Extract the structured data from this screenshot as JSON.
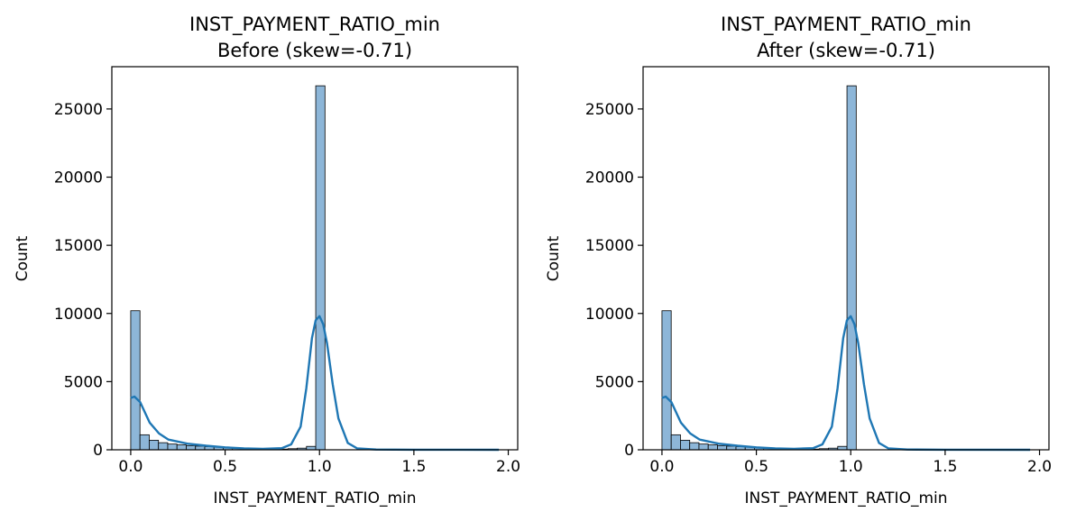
{
  "chart_data": [
    {
      "type": "bar",
      "title_line1": "INST_PAYMENT_RATIO_min",
      "title_line2": "Before (skew=-0.71)",
      "xlabel": "INST_PAYMENT_RATIO_min",
      "ylabel": "Count",
      "xlim": [
        -0.1,
        2.05
      ],
      "ylim": [
        0,
        28100
      ],
      "xticks": [
        0.0,
        0.5,
        1.0,
        1.5,
        2.0
      ],
      "xtick_labels": [
        "0.0",
        "0.5",
        "1.0",
        "1.5",
        "2.0"
      ],
      "yticks": [
        0,
        5000,
        10000,
        15000,
        20000,
        25000
      ],
      "ytick_labels": [
        "0",
        "5000",
        "10000",
        "15000",
        "20000",
        "25000"
      ],
      "bin_width": 0.049,
      "bins_start": [
        0.0,
        0.049,
        0.098,
        0.147,
        0.196,
        0.245,
        0.294,
        0.343,
        0.392,
        0.441,
        0.49,
        0.539,
        0.588,
        0.637,
        0.686,
        0.735,
        0.784,
        0.833,
        0.882,
        0.931,
        0.98
      ],
      "values": [
        10200,
        1100,
        700,
        520,
        420,
        360,
        310,
        270,
        230,
        190,
        160,
        110,
        80,
        60,
        50,
        45,
        50,
        80,
        120,
        250,
        26700
      ],
      "kde": {
        "x": [
          0.0,
          0.02,
          0.05,
          0.08,
          0.1,
          0.15,
          0.2,
          0.3,
          0.4,
          0.5,
          0.6,
          0.7,
          0.8,
          0.85,
          0.9,
          0.93,
          0.96,
          0.98,
          1.0,
          1.02,
          1.04,
          1.07,
          1.1,
          1.15,
          1.2,
          1.3,
          1.5,
          1.95
        ],
        "y": [
          3800,
          3900,
          3500,
          2600,
          2000,
          1200,
          750,
          450,
          300,
          180,
          100,
          70,
          120,
          400,
          1700,
          4500,
          8200,
          9500,
          9800,
          9200,
          7800,
          4800,
          2300,
          500,
          100,
          20,
          5,
          0
        ]
      },
      "kde_color": "#1f77b4",
      "bar_color": "#8db6d8",
      "bar_edge_color": "#000000"
    },
    {
      "type": "bar",
      "title_line1": "INST_PAYMENT_RATIO_min",
      "title_line2": "After (skew=-0.71)",
      "xlabel": "INST_PAYMENT_RATIO_min",
      "ylabel": "Count",
      "xlim": [
        -0.1,
        2.05
      ],
      "ylim": [
        0,
        28100
      ],
      "xticks": [
        0.0,
        0.5,
        1.0,
        1.5,
        2.0
      ],
      "xtick_labels": [
        "0.0",
        "0.5",
        "1.0",
        "1.5",
        "2.0"
      ],
      "yticks": [
        0,
        5000,
        10000,
        15000,
        20000,
        25000
      ],
      "ytick_labels": [
        "0",
        "5000",
        "10000",
        "15000",
        "20000",
        "25000"
      ],
      "bin_width": 0.049,
      "bins_start": [
        0.0,
        0.049,
        0.098,
        0.147,
        0.196,
        0.245,
        0.294,
        0.343,
        0.392,
        0.441,
        0.49,
        0.539,
        0.588,
        0.637,
        0.686,
        0.735,
        0.784,
        0.833,
        0.882,
        0.931,
        0.98
      ],
      "values": [
        10200,
        1100,
        700,
        520,
        420,
        360,
        310,
        270,
        230,
        190,
        160,
        110,
        80,
        60,
        50,
        45,
        50,
        80,
        120,
        250,
        26700
      ],
      "kde": {
        "x": [
          0.0,
          0.02,
          0.05,
          0.08,
          0.1,
          0.15,
          0.2,
          0.3,
          0.4,
          0.5,
          0.6,
          0.7,
          0.8,
          0.85,
          0.9,
          0.93,
          0.96,
          0.98,
          1.0,
          1.02,
          1.04,
          1.07,
          1.1,
          1.15,
          1.2,
          1.3,
          1.5,
          1.95
        ],
        "y": [
          3800,
          3900,
          3500,
          2600,
          2000,
          1200,
          750,
          450,
          300,
          180,
          100,
          70,
          120,
          400,
          1700,
          4500,
          8200,
          9500,
          9800,
          9200,
          7800,
          4800,
          2300,
          500,
          100,
          20,
          5,
          0
        ]
      },
      "kde_color": "#1f77b4",
      "bar_color": "#8db6d8",
      "bar_edge_color": "#000000"
    }
  ]
}
